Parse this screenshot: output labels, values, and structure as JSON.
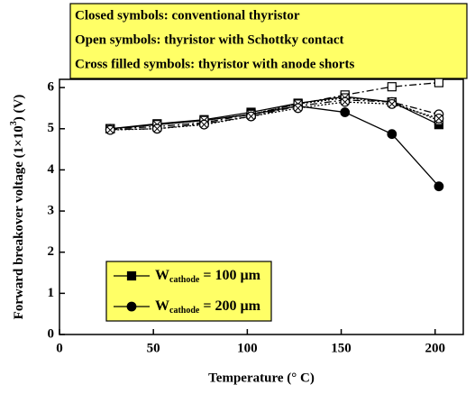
{
  "chart_data": {
    "type": "line",
    "annotations": [
      "Closed symbols: conventional thyristor",
      "Open symbols: thyristor with Schottky contact",
      "Cross filled symbols: thyristor with anode shorts"
    ],
    "xlabel": "Temperature (° C)",
    "ylabel": {
      "text": "Forward breakover voltage (1×10",
      "sup": "3",
      "rest": ") (V)"
    },
    "x": [
      27,
      52,
      77,
      102,
      127,
      152,
      177,
      202
    ],
    "series": [
      {
        "marker": "square",
        "fill": "closed",
        "dash": "solid",
        "color": "#000000",
        "values": [
          5.0,
          5.12,
          5.22,
          5.4,
          5.62,
          5.78,
          5.65,
          5.1
        ]
      },
      {
        "marker": "circle",
        "fill": "closed",
        "dash": "solid",
        "color": "#000000",
        "values": [
          5.0,
          5.1,
          5.2,
          5.35,
          5.55,
          5.4,
          4.87,
          3.6
        ]
      },
      {
        "marker": "square",
        "fill": "open",
        "dash": "dashdot",
        "color": "#000000",
        "values": [
          5.0,
          5.05,
          5.15,
          5.35,
          5.6,
          5.82,
          6.02,
          6.12
        ]
      },
      {
        "marker": "circle",
        "fill": "open",
        "dash": "dashdot",
        "color": "#000000",
        "values": [
          4.98,
          5.0,
          5.12,
          5.3,
          5.55,
          5.7,
          5.65,
          5.35
        ]
      },
      {
        "marker": "square",
        "fill": "cross",
        "dash": "dot",
        "color": "#000000",
        "values": [
          5.0,
          5.1,
          5.2,
          5.35,
          5.6,
          5.75,
          5.65,
          5.2
        ]
      },
      {
        "marker": "circle",
        "fill": "cross",
        "dash": "dot",
        "color": "#000000",
        "values": [
          4.97,
          5.0,
          5.1,
          5.3,
          5.5,
          5.65,
          5.6,
          5.25
        ]
      }
    ],
    "legend": {
      "entries": [
        {
          "marker": "square",
          "symbol": "W",
          "sub": "cathode",
          "text": " = 100 µm"
        },
        {
          "marker": "circle",
          "symbol": "W",
          "sub": "cathode",
          "text": " = 200 µm"
        }
      ]
    },
    "xlim": [
      0,
      215
    ],
    "xticks": [
      0,
      50,
      100,
      150,
      200
    ],
    "ylim": [
      0,
      6.2
    ],
    "yticks": [
      0,
      1,
      2,
      3,
      4,
      5,
      6
    ]
  }
}
